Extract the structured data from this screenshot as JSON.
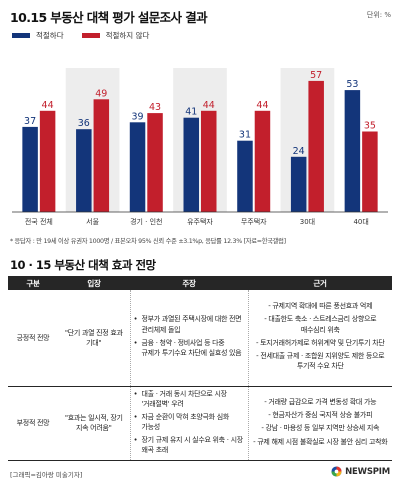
{
  "chart_data": {
    "type": "bar",
    "title": "10.15 부동산 대책 평가 설문조사 결과",
    "unit": "단위: %",
    "categories": [
      "전국 전체",
      "서울",
      "경기 · 인천",
      "유주택자",
      "무주택자",
      "30대",
      "40대"
    ],
    "series": [
      {
        "name": "적절하다",
        "color": "#13357a",
        "values": [
          37,
          36,
          39,
          41,
          31,
          24,
          53
        ]
      },
      {
        "name": "적절하지 않다",
        "color": "#c21f2c",
        "values": [
          44,
          49,
          43,
          44,
          44,
          57,
          35
        ]
      }
    ],
    "ylim": [
      0,
      60
    ],
    "grid": false,
    "legend": "top-left",
    "footnote": "* 응답자 : 만 19세 이상 유권자 1000명 / 표본오차 95% 신뢰 수준 ±3.1%p, 응답률 12.3%   [자료=한국갤럽]"
  },
  "table": {
    "title": "10 · 15 부동산 대책 효과 전망",
    "headers": [
      "구분",
      "입장",
      "주장",
      "근거"
    ],
    "rows": [
      {
        "category": "긍정적 전망",
        "position": "\"단기 과열 진정 효과 기대\"",
        "claims": [
          "정부가 과열된 주택시장에 대한 전면 관리체제 돌입",
          "금융 · 청약 · 정비사업 등 다중 규제가 투기수요 차단에 실효성 있음"
        ],
        "reasons": [
          "- 규제지역 확대에 따른 풍선효과 억제",
          "- 대출한도 축소 · 스트레스금리 상향으로 매수심리 위축",
          "- 토지거래허가제로 허위계약 및 단기투기 차단",
          "- 전세대출 규제 · 조합원 지위양도 제한 등으로 투기적 수요 차단"
        ]
      },
      {
        "category": "부정적 전망",
        "position": "\"효과는 일시적, 장기 지속 어려움\"",
        "claims": [
          "대출 · 거래 동시 차단으로 시장 '거래절벽' 우려",
          "자금 순환이 막혀 초양극화 심화 가능성",
          "장기 규제 유지 시 실수요 위축 · 시장 왜곡 초래"
        ],
        "reasons": [
          "- 거래량 급감으로 가격 변동성 확대 가능",
          "- 현금자산가 중심 국지적 상승 불가피",
          "- 강남 · 마용성 등 일부 지역만 상승세 지속",
          "- 규제 해제 시점 불확실로 시장 불안 심리 고착화"
        ]
      }
    ]
  },
  "credit": "[그래픽=김아랑 미술기자]",
  "logo": {
    "text": "NEWSPIM",
    "icon": "newspim-swirl-icon"
  }
}
